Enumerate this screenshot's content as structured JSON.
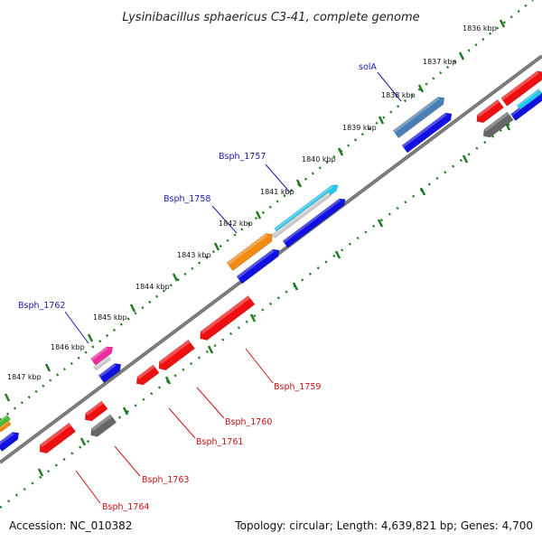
{
  "title": "Lysinibacillus sphaericus C3-41, complete genome",
  "footer": {
    "accession": "Accession: NC_010382",
    "summary": "Topology: circular; Length: 4,639,821 bp; Genes: 4,700"
  },
  "colors": {
    "forward_label": "#1a1aa8",
    "reverse_label": "#cc1111",
    "ruler": "#1f7a1f",
    "backbone": "#7a7a7a"
  },
  "kbp_labels": [
    "1836 kbp",
    "1837 kbp",
    "1838 kbp",
    "1839 kbp",
    "1840 kbp",
    "1841 kbp",
    "1842 kbp",
    "1843 kbp",
    "1844 kbp",
    "1845 kbp",
    "1846 kbp",
    "1847 kbp"
  ],
  "gene_labels": {
    "forward": [
      "solA",
      "Bsph_1757",
      "Bsph_1758",
      "Bsph_1762"
    ],
    "reverse": [
      "Bsph_1759",
      "Bsph_1760",
      "Bsph_1761",
      "Bsph_1763",
      "Bsph_1764"
    ]
  },
  "gene_colors": {
    "blue": "#1010e0",
    "steel": "#4a7fb5",
    "cyan": "#22c8ee",
    "orange": "#f08a10",
    "magenta": "#ee2aa0",
    "red": "#ee1010",
    "gray": "#666666",
    "green": "#44bb33",
    "light_gray": "#cfcfcf"
  }
}
